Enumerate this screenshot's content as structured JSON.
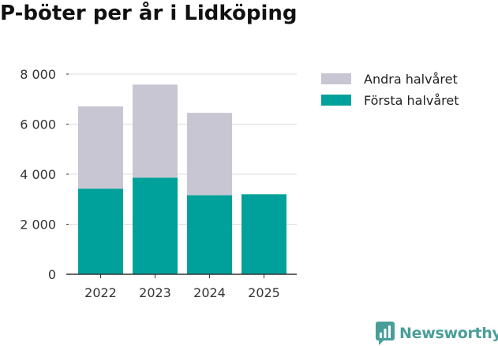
{
  "chart_data": {
    "type": "bar",
    "stacked": true,
    "title": "P-böter per år i Lidköping",
    "categories": [
      "2022",
      "2023",
      "2024",
      "2025"
    ],
    "series": [
      {
        "name": "Första halvåret",
        "color": "#00a19a",
        "values": [
          3420,
          3860,
          3160,
          3200
        ]
      },
      {
        "name": "Andra halvåret",
        "color": "#c7c6d2",
        "values": [
          3290,
          3720,
          3290,
          null
        ]
      }
    ],
    "legend_order": [
      "Andra halvåret",
      "Första halvåret"
    ],
    "yticks": [
      0,
      2000,
      4000,
      6000,
      8000
    ],
    "ytick_labels": [
      "0",
      "2 000",
      "4 000",
      "6 000",
      "8 000"
    ],
    "ylim": [
      0,
      8000
    ],
    "xlabel": "",
    "ylabel": "",
    "grid": true,
    "legend_position": "right"
  },
  "branding": {
    "logo_text": "Newsworthy",
    "logo_color": "#4a9e9a"
  }
}
